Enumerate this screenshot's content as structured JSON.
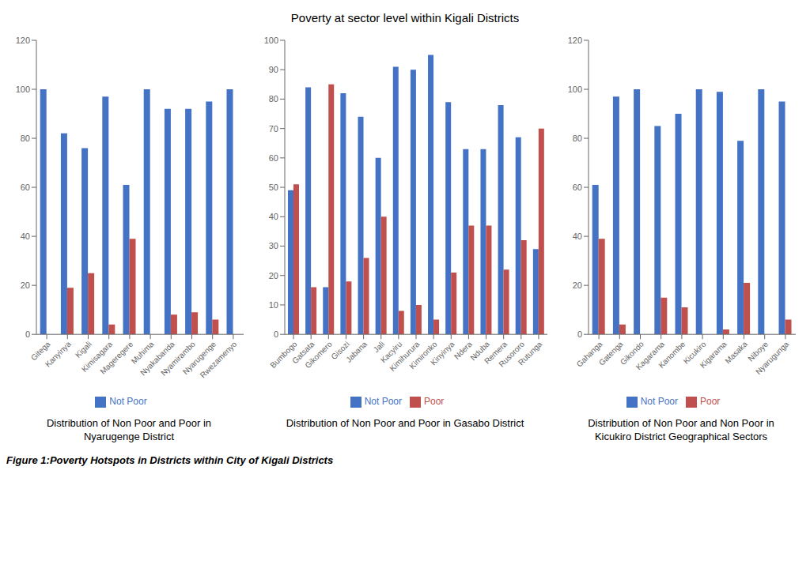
{
  "title": "Poverty at sector level within Kigali Districts",
  "annotations": [
    "Figure 1:Poverty Hotspots in Districts within City of Kigali Districts"
  ],
  "chart_data": [
    {
      "type": "bar",
      "title": "Distribution of Non Poor and Poor in\nNyarugenge District",
      "categories": [
        "Gitega",
        "Kanyinya",
        "Kigali",
        "Kimisagara",
        "Mageregere",
        "Muhima",
        "Nyakabanda",
        "Nyamirambo",
        "Nyarugenge",
        "Rwezamenyo"
      ],
      "series": [
        {
          "name": "Not Poor",
          "color": "#4472C4",
          "values": [
            100,
            82,
            76,
            97,
            61,
            100,
            92,
            92,
            95,
            100
          ]
        },
        {
          "name": null,
          "color": "#C0504D",
          "values": [
            0,
            19,
            25,
            4,
            39,
            0,
            8,
            9,
            6,
            0
          ]
        }
      ],
      "ylim": [
        0,
        120
      ],
      "yticks": [
        0,
        20,
        40,
        60,
        80,
        100,
        120
      ],
      "grid": false,
      "legend": "bottom"
    },
    {
      "type": "bar",
      "title": "Distribution of Non Poor and Poor in Gasabo District",
      "categories": [
        "Bumbogo",
        "Gatsata",
        "Gikomero",
        "Gisozi",
        "Jabana",
        "Jali",
        "Kacyiru",
        "Kimihurura",
        "Kimironko",
        "Kinyinya",
        "Ndera",
        "Nduba",
        "Remera",
        "Rusororo",
        "Rutunga"
      ],
      "series": [
        {
          "name": "Not Poor",
          "color": "#4472C4",
          "values": [
            49,
            84,
            16,
            82,
            74,
            60,
            91,
            90,
            95,
            79,
            63,
            63,
            78,
            67,
            29
          ]
        },
        {
          "name": "Poor",
          "color": "#C0504D",
          "values": [
            51,
            16,
            85,
            18,
            26,
            40,
            8,
            10,
            5,
            21,
            37,
            37,
            22,
            32,
            70
          ]
        }
      ],
      "ylim": [
        0,
        100
      ],
      "yticks": [
        0,
        10,
        20,
        30,
        40,
        50,
        60,
        70,
        80,
        90,
        100
      ],
      "grid": false,
      "legend": "bottom"
    },
    {
      "type": "bar",
      "title": "Distribution of Non Poor and Non Poor in\nKicukiro District Geographical Sectors",
      "categories": [
        "Gahanga",
        "Gatenga",
        "Gikondo",
        "Kagarama",
        "Kanombe",
        "Kicukiro",
        "Kigarama",
        "Masaka",
        "Niboye",
        "Nyarugunga"
      ],
      "series": [
        {
          "name": "Not Poor",
          "color": "#4472C4",
          "values": [
            61,
            97,
            100,
            85,
            90,
            100,
            99,
            79,
            100,
            95
          ]
        },
        {
          "name": "Poor",
          "color": "#C0504D",
          "values": [
            39,
            4,
            0,
            15,
            11,
            0,
            2,
            21,
            0,
            6
          ]
        }
      ],
      "ylim": [
        0,
        120
      ],
      "yticks": [
        0,
        20,
        40,
        60,
        80,
        100,
        120
      ],
      "grid": false,
      "legend": "bottom"
    }
  ]
}
